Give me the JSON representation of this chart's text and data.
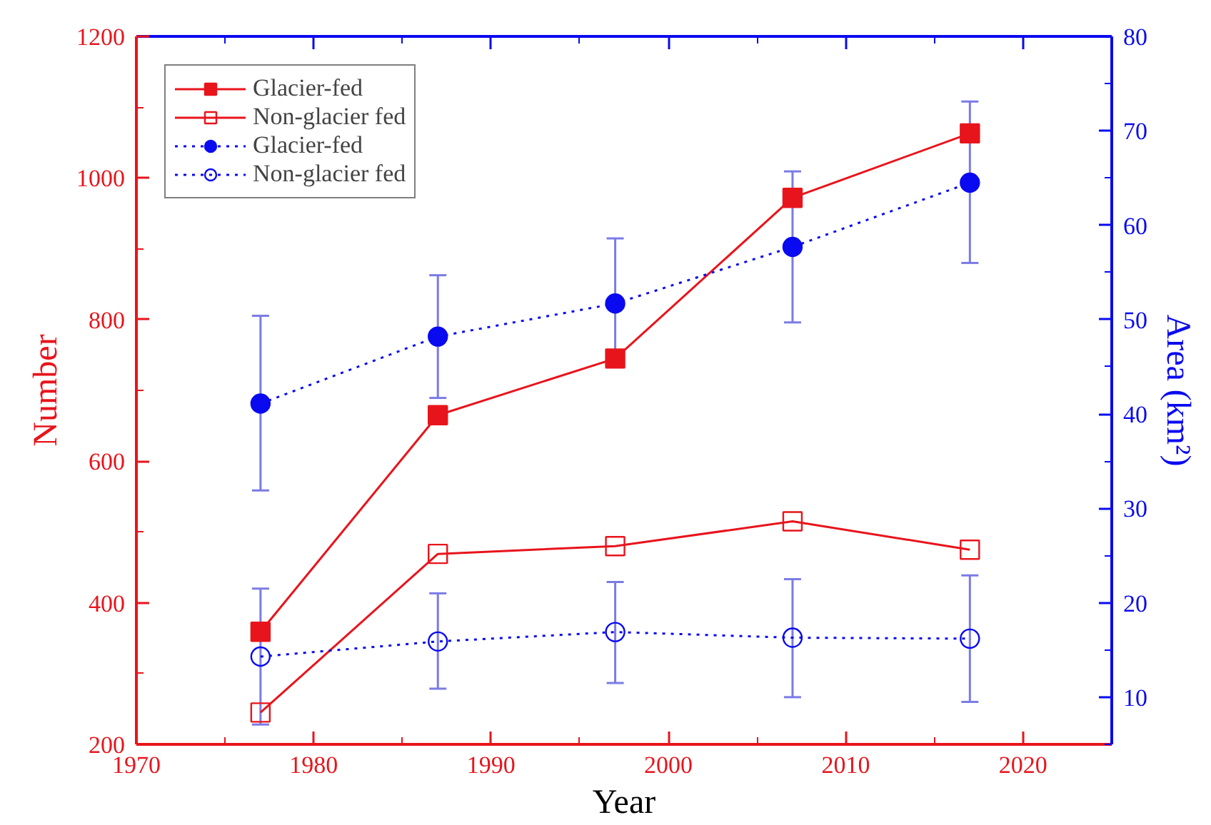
{
  "chart_data": {
    "type": "line",
    "xlabel": "Year",
    "ylabel": "Number",
    "y2label": "Area (km²)",
    "x": [
      1977,
      1987,
      1997,
      2007,
      2017
    ],
    "xlim": [
      1970,
      2025
    ],
    "xticks": [
      1970,
      1980,
      1990,
      2000,
      2010,
      2020
    ],
    "ylim": [
      200,
      1200
    ],
    "yticks": [
      200,
      400,
      600,
      800,
      1000,
      1200
    ],
    "y2lim": [
      5,
      80
    ],
    "y2ticks": [
      10,
      20,
      30,
      40,
      50,
      60,
      70,
      80
    ],
    "grid": false,
    "legend": "top left",
    "series": [
      {
        "name": "Glacier-fed",
        "color": "#e8141c",
        "marker": "square",
        "line_style": "solid",
        "values": [
          359,
          665,
          745,
          972,
          1063
        ]
      },
      {
        "name": "Non-glacier fed",
        "color": "#e8141c",
        "marker": "square",
        "line_style": "solid",
        "values": [
          245,
          469,
          480,
          515,
          475
        ]
      },
      {
        "name": "Glacier-fed",
        "color": "#0a0af0",
        "marker": "circle",
        "line_style": "dotted",
        "axis": "y2",
        "values": [
          41.1,
          48.2,
          51.7,
          57.7,
          64.5
        ],
        "errors": [
          [
            31.9,
            50.4
          ],
          [
            41.7,
            54.7
          ],
          [
            45.0,
            58.6
          ],
          [
            49.7,
            65.7
          ],
          [
            56.0,
            73.1
          ]
        ]
      },
      {
        "name": "Non-glacier fed",
        "color": "#0a0af0",
        "marker": "circle",
        "line_style": "dotted",
        "axis": "y2",
        "values": [
          14.3,
          15.9,
          16.9,
          16.3,
          16.2
        ],
        "errors": [
          [
            7.1,
            21.5
          ],
          [
            10.9,
            21.0
          ],
          [
            11.5,
            22.2
          ],
          [
            10.0,
            22.5
          ],
          [
            9.5,
            22.9
          ]
        ]
      }
    ]
  }
}
